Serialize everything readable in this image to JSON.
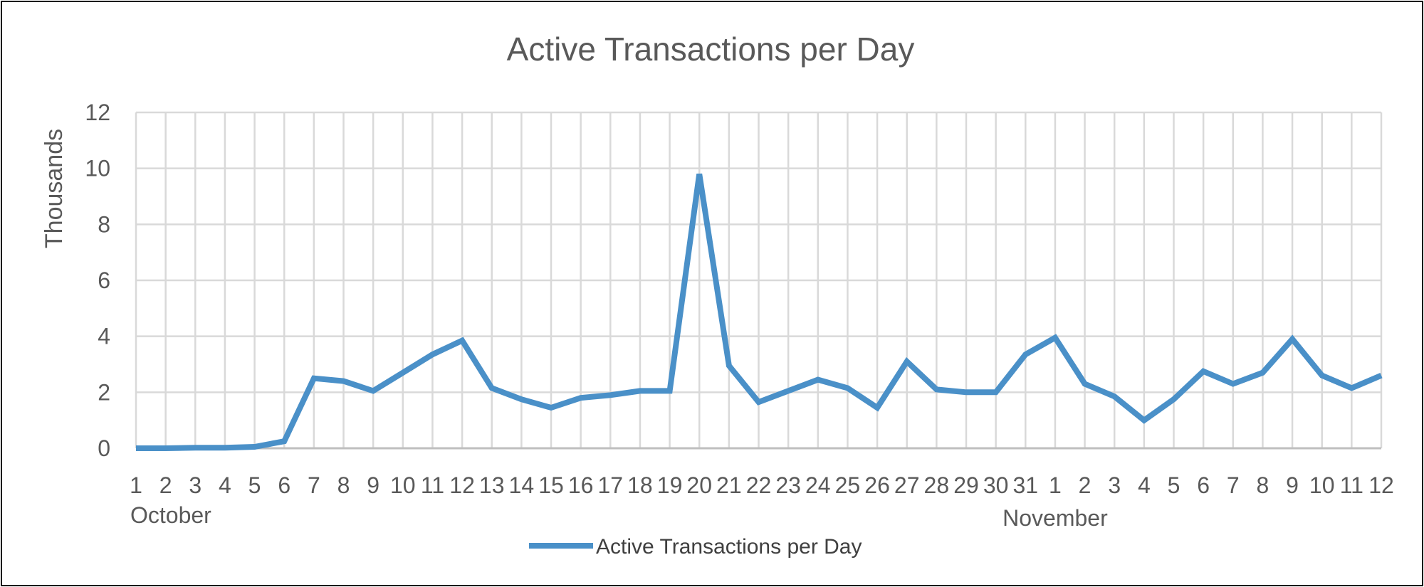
{
  "chart_data": {
    "type": "line",
    "title": "Active Transactions per Day",
    "ylabel": "Thousands",
    "ylim": [
      0,
      12
    ],
    "yticks": [
      "0",
      "2",
      "4",
      "6",
      "8",
      "10",
      "12"
    ],
    "grid": true,
    "legend_position": "bottom",
    "categories": [
      "1",
      "2",
      "3",
      "4",
      "5",
      "6",
      "7",
      "8",
      "9",
      "10",
      "11",
      "12",
      "13",
      "14",
      "15",
      "16",
      "17",
      "18",
      "19",
      "20",
      "21",
      "22",
      "23",
      "24",
      "25",
      "26",
      "27",
      "28",
      "29",
      "30",
      "31",
      "1",
      "2",
      "3",
      "4",
      "5",
      "6",
      "7",
      "8",
      "9",
      "10",
      "11",
      "12"
    ],
    "groups": [
      {
        "label": "October",
        "start_index": 0
      },
      {
        "label": "November",
        "start_index": 31
      }
    ],
    "series": [
      {
        "name": "Active Transactions per Day",
        "color": "#4a90c8",
        "values": [
          0.0,
          0.0,
          0.02,
          0.02,
          0.05,
          0.25,
          2.5,
          2.4,
          2.05,
          2.7,
          3.35,
          3.85,
          2.15,
          1.75,
          1.45,
          1.8,
          1.9,
          2.05,
          2.05,
          9.8,
          2.95,
          1.65,
          2.05,
          2.45,
          2.15,
          1.45,
          3.1,
          2.1,
          2.0,
          2.0,
          3.35,
          3.95,
          2.3,
          1.85,
          1.0,
          1.75,
          2.75,
          2.3,
          2.7,
          3.9,
          2.6,
          2.15,
          2.6
        ]
      }
    ]
  }
}
